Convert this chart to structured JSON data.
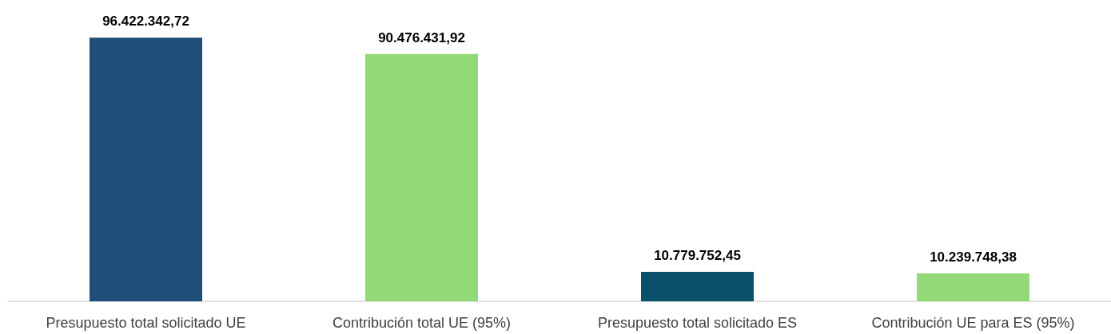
{
  "chart_data": {
    "type": "bar",
    "categories": [
      "Presupuesto total solicitado UE",
      "Contribución total UE (95%)",
      "Presupuesto total solicitado ES",
      "Contribución UE para ES (95%)"
    ],
    "values": [
      96422342.72,
      90476431.92,
      10779752.45,
      10239748.38
    ],
    "colors": [
      "#1f4e79",
      "#92d978",
      "#0b5069",
      "#92d978"
    ],
    "value_labels": [
      "96.422.342,72",
      "90.476.431,92",
      "10.779.752,45",
      "10.239.748,38"
    ],
    "grid": false
  }
}
